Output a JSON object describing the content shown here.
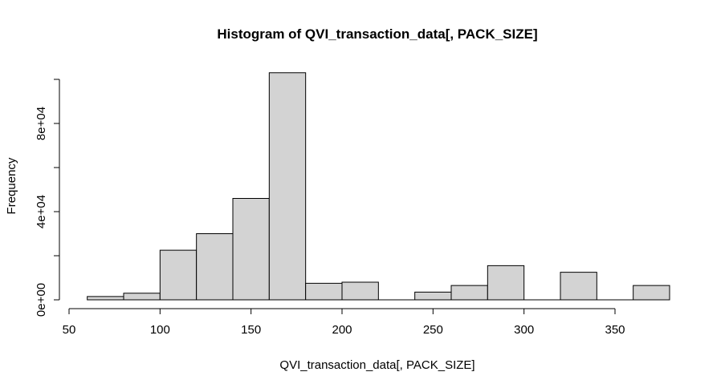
{
  "chart_data": {
    "type": "bar",
    "title": "Histogram of QVI_transaction_data[, PACK_SIZE]",
    "xlabel": "QVI_transaction_data[, PACK_SIZE]",
    "ylabel": "Frequency",
    "xlim": [
      50,
      380
    ],
    "ylim": [
      0,
      100000
    ],
    "x_ticks": [
      50,
      100,
      150,
      200,
      250,
      300,
      350
    ],
    "x_tick_labels": [
      "50",
      "100",
      "150",
      "200",
      "250",
      "300",
      "350"
    ],
    "y_ticks": [
      0,
      20000,
      40000,
      60000,
      80000,
      100000
    ],
    "y_tick_labels": [
      "0e+00",
      "",
      "4e+04",
      "",
      "8e+04",
      ""
    ],
    "bin_edges": [
      60,
      80,
      100,
      120,
      140,
      160,
      180,
      200,
      220,
      240,
      260,
      280,
      300,
      320,
      340,
      360,
      380
    ],
    "values": [
      1500,
      3000,
      22500,
      30000,
      46000,
      103000,
      7500,
      8000,
      0,
      3500,
      6500,
      15500,
      0,
      12500,
      0,
      6500
    ],
    "grid": false,
    "colors": {
      "bar_fill": "#d3d3d3",
      "bar_stroke": "#000000"
    }
  }
}
